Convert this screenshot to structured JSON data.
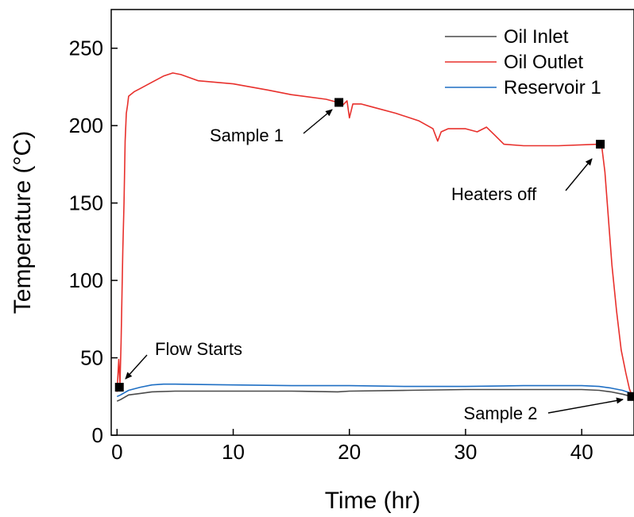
{
  "chart_data": {
    "type": "line",
    "title": "",
    "xlabel": "Time (hr)",
    "ylabel": "Temperature (°C)",
    "xlim": [
      -0.5,
      44.5
    ],
    "ylim": [
      0,
      275
    ],
    "xticks": [
      0,
      10,
      20,
      30,
      40
    ],
    "yticks": [
      0,
      50,
      100,
      150,
      200,
      250
    ],
    "grid": false,
    "legend_position": "top-right",
    "series": [
      {
        "name": "Oil Inlet",
        "color": "#4a4a4a",
        "x": [
          0,
          0.3,
          1,
          2,
          3,
          5,
          10,
          15,
          19,
          20,
          25,
          30,
          35,
          40,
          41.5,
          42.5,
          43.5,
          44.3
        ],
        "y": [
          22,
          23,
          26,
          27,
          28,
          28.5,
          28.5,
          28.5,
          28,
          28.5,
          29,
          29.5,
          29.5,
          29.5,
          29,
          28,
          26.5,
          25
        ]
      },
      {
        "name": "Oil Outlet",
        "color": "#e8302c",
        "x": [
          0,
          0.15,
          0.25,
          0.35,
          0.5,
          0.6,
          0.7,
          0.8,
          0.9,
          1,
          1.5,
          2,
          3,
          4,
          4.8,
          5.5,
          7,
          10,
          13,
          15,
          18,
          19,
          19.4,
          19.8,
          20,
          20.3,
          21,
          22,
          24,
          26,
          27.2,
          27.6,
          27.9,
          28.5,
          30,
          31,
          31.8,
          32.5,
          33.3,
          35,
          38,
          41.5,
          41.7,
          42,
          42.3,
          42.6,
          43,
          43.4,
          43.8,
          44.1,
          44.3
        ],
        "y": [
          28,
          49,
          33,
          60,
          120,
          150,
          190,
          208,
          213,
          219,
          222,
          224,
          228,
          232,
          234,
          233,
          229,
          227,
          223,
          220,
          217,
          215,
          213,
          216,
          205,
          214,
          214,
          212,
          208,
          203,
          198,
          190,
          196,
          198,
          198,
          196,
          199,
          194,
          188,
          187,
          187,
          188,
          188,
          170,
          140,
          110,
          80,
          55,
          40,
          30,
          26
        ]
      },
      {
        "name": "Reservoir 1",
        "color": "#1f6fc4",
        "x": [
          0,
          0.3,
          1,
          2,
          3,
          4,
          5,
          10,
          15,
          20,
          25,
          30,
          35,
          40,
          41.5,
          42.5,
          43.5,
          44.3
        ],
        "y": [
          25,
          26,
          29,
          31,
          32.5,
          33,
          33,
          32.5,
          32,
          32,
          31.5,
          31.5,
          32,
          32,
          31.5,
          30.5,
          29,
          27
        ]
      }
    ],
    "markers": [
      {
        "label": "Flow Starts",
        "x": 0.2,
        "y": 31
      },
      {
        "label": "Sample 1",
        "x": 19.1,
        "y": 215
      },
      {
        "label": "Heaters off",
        "x": 41.6,
        "y": 188
      },
      {
        "label": "Sample 2",
        "x": 44.3,
        "y": 25
      }
    ]
  }
}
